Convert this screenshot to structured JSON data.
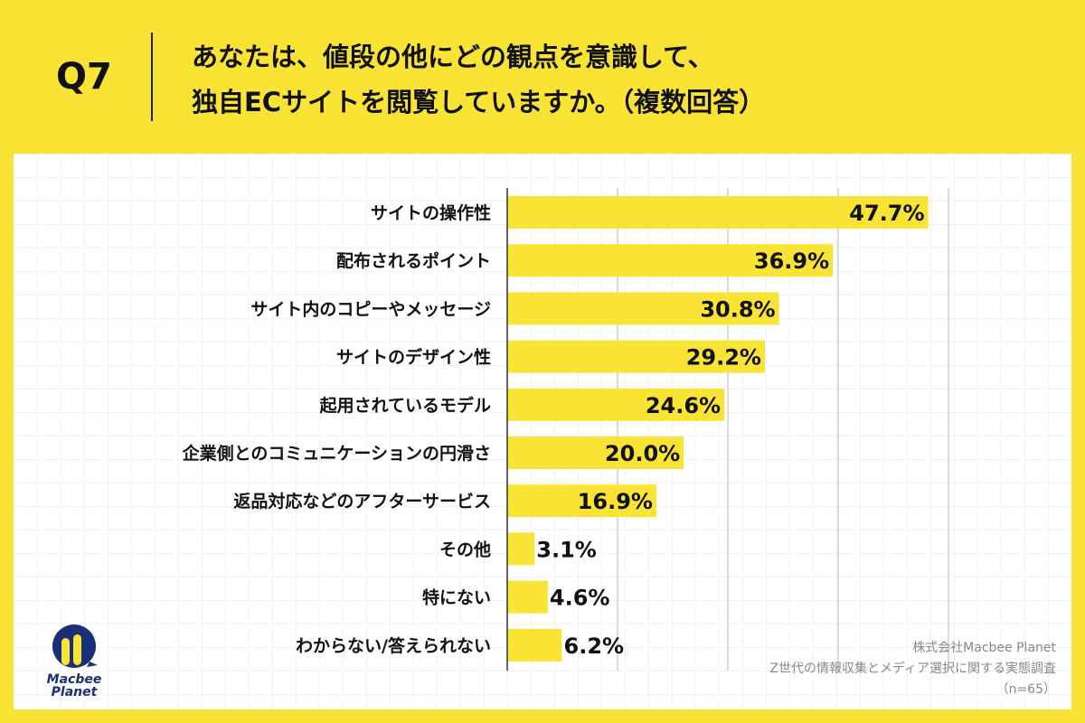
{
  "header": {
    "question": "Q7",
    "title_line1": "あなたは、値段の他にどの観点を意識して、",
    "title_line2": "独自ECサイトを閲覧していますか。（複数回答）"
  },
  "chart_data": {
    "type": "bar",
    "orientation": "horizontal",
    "categories": [
      "サイトの操作性",
      "配布されるポイント",
      "サイト内のコピーやメッセージ",
      "サイトのデザイン性",
      "起用されているモデル",
      "企業側とのコミュニケーションの円滑さ",
      "返品対応などのアフターサービス",
      "その他",
      "特にない",
      "わからない/答えられない"
    ],
    "values": [
      47.7,
      36.9,
      30.8,
      29.2,
      24.6,
      20.0,
      16.9,
      3.1,
      4.6,
      6.2
    ],
    "data_labels": [
      "47.7%",
      "36.9%",
      "30.8%",
      "29.2%",
      "24.6%",
      "20.0%",
      "16.9%",
      "3.1%",
      "4.6%",
      "6.2%"
    ],
    "xlim": [
      0,
      50
    ],
    "gridlines": [
      12.5,
      25,
      37.5,
      50
    ],
    "grid": true,
    "bar_color": "#f9e334"
  },
  "footer": {
    "company": "株式会社Macbee Planet",
    "survey": "Z世代の情報収集とメディア選択に関する実態調査",
    "n": "（n=65）"
  },
  "logo": {
    "text_line1": "Macbee",
    "text_line2": "Planet",
    "color": "#1a2f7a",
    "accent": "#f9e334"
  }
}
